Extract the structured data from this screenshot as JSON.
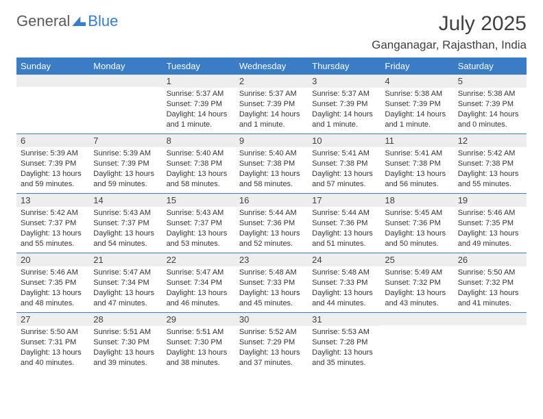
{
  "logo": {
    "text_a": "General",
    "text_b": "Blue"
  },
  "title": "July 2025",
  "location": "Ganganagar, Rajasthan, India",
  "colors": {
    "brand_blue": "#3b7dc4",
    "header_bg": "#3b7dc4",
    "header_text": "#ffffff",
    "daynum_bg": "#eeeeee",
    "body_text": "#333333",
    "page_bg": "#ffffff",
    "week_divider": "#3b7dc4"
  },
  "day_headers": [
    "Sunday",
    "Monday",
    "Tuesday",
    "Wednesday",
    "Thursday",
    "Friday",
    "Saturday"
  ],
  "weeks": [
    [
      null,
      null,
      {
        "n": "1",
        "sr": "Sunrise: 5:37 AM",
        "ss": "Sunset: 7:39 PM",
        "dl1": "Daylight: 14 hours",
        "dl2": "and 1 minute."
      },
      {
        "n": "2",
        "sr": "Sunrise: 5:37 AM",
        "ss": "Sunset: 7:39 PM",
        "dl1": "Daylight: 14 hours",
        "dl2": "and 1 minute."
      },
      {
        "n": "3",
        "sr": "Sunrise: 5:37 AM",
        "ss": "Sunset: 7:39 PM",
        "dl1": "Daylight: 14 hours",
        "dl2": "and 1 minute."
      },
      {
        "n": "4",
        "sr": "Sunrise: 5:38 AM",
        "ss": "Sunset: 7:39 PM",
        "dl1": "Daylight: 14 hours",
        "dl2": "and 1 minute."
      },
      {
        "n": "5",
        "sr": "Sunrise: 5:38 AM",
        "ss": "Sunset: 7:39 PM",
        "dl1": "Daylight: 14 hours",
        "dl2": "and 0 minutes."
      }
    ],
    [
      {
        "n": "6",
        "sr": "Sunrise: 5:39 AM",
        "ss": "Sunset: 7:39 PM",
        "dl1": "Daylight: 13 hours",
        "dl2": "and 59 minutes."
      },
      {
        "n": "7",
        "sr": "Sunrise: 5:39 AM",
        "ss": "Sunset: 7:39 PM",
        "dl1": "Daylight: 13 hours",
        "dl2": "and 59 minutes."
      },
      {
        "n": "8",
        "sr": "Sunrise: 5:40 AM",
        "ss": "Sunset: 7:38 PM",
        "dl1": "Daylight: 13 hours",
        "dl2": "and 58 minutes."
      },
      {
        "n": "9",
        "sr": "Sunrise: 5:40 AM",
        "ss": "Sunset: 7:38 PM",
        "dl1": "Daylight: 13 hours",
        "dl2": "and 58 minutes."
      },
      {
        "n": "10",
        "sr": "Sunrise: 5:41 AM",
        "ss": "Sunset: 7:38 PM",
        "dl1": "Daylight: 13 hours",
        "dl2": "and 57 minutes."
      },
      {
        "n": "11",
        "sr": "Sunrise: 5:41 AM",
        "ss": "Sunset: 7:38 PM",
        "dl1": "Daylight: 13 hours",
        "dl2": "and 56 minutes."
      },
      {
        "n": "12",
        "sr": "Sunrise: 5:42 AM",
        "ss": "Sunset: 7:38 PM",
        "dl1": "Daylight: 13 hours",
        "dl2": "and 55 minutes."
      }
    ],
    [
      {
        "n": "13",
        "sr": "Sunrise: 5:42 AM",
        "ss": "Sunset: 7:37 PM",
        "dl1": "Daylight: 13 hours",
        "dl2": "and 55 minutes."
      },
      {
        "n": "14",
        "sr": "Sunrise: 5:43 AM",
        "ss": "Sunset: 7:37 PM",
        "dl1": "Daylight: 13 hours",
        "dl2": "and 54 minutes."
      },
      {
        "n": "15",
        "sr": "Sunrise: 5:43 AM",
        "ss": "Sunset: 7:37 PM",
        "dl1": "Daylight: 13 hours",
        "dl2": "and 53 minutes."
      },
      {
        "n": "16",
        "sr": "Sunrise: 5:44 AM",
        "ss": "Sunset: 7:36 PM",
        "dl1": "Daylight: 13 hours",
        "dl2": "and 52 minutes."
      },
      {
        "n": "17",
        "sr": "Sunrise: 5:44 AM",
        "ss": "Sunset: 7:36 PM",
        "dl1": "Daylight: 13 hours",
        "dl2": "and 51 minutes."
      },
      {
        "n": "18",
        "sr": "Sunrise: 5:45 AM",
        "ss": "Sunset: 7:36 PM",
        "dl1": "Daylight: 13 hours",
        "dl2": "and 50 minutes."
      },
      {
        "n": "19",
        "sr": "Sunrise: 5:46 AM",
        "ss": "Sunset: 7:35 PM",
        "dl1": "Daylight: 13 hours",
        "dl2": "and 49 minutes."
      }
    ],
    [
      {
        "n": "20",
        "sr": "Sunrise: 5:46 AM",
        "ss": "Sunset: 7:35 PM",
        "dl1": "Daylight: 13 hours",
        "dl2": "and 48 minutes."
      },
      {
        "n": "21",
        "sr": "Sunrise: 5:47 AM",
        "ss": "Sunset: 7:34 PM",
        "dl1": "Daylight: 13 hours",
        "dl2": "and 47 minutes."
      },
      {
        "n": "22",
        "sr": "Sunrise: 5:47 AM",
        "ss": "Sunset: 7:34 PM",
        "dl1": "Daylight: 13 hours",
        "dl2": "and 46 minutes."
      },
      {
        "n": "23",
        "sr": "Sunrise: 5:48 AM",
        "ss": "Sunset: 7:33 PM",
        "dl1": "Daylight: 13 hours",
        "dl2": "and 45 minutes."
      },
      {
        "n": "24",
        "sr": "Sunrise: 5:48 AM",
        "ss": "Sunset: 7:33 PM",
        "dl1": "Daylight: 13 hours",
        "dl2": "and 44 minutes."
      },
      {
        "n": "25",
        "sr": "Sunrise: 5:49 AM",
        "ss": "Sunset: 7:32 PM",
        "dl1": "Daylight: 13 hours",
        "dl2": "and 43 minutes."
      },
      {
        "n": "26",
        "sr": "Sunrise: 5:50 AM",
        "ss": "Sunset: 7:32 PM",
        "dl1": "Daylight: 13 hours",
        "dl2": "and 41 minutes."
      }
    ],
    [
      {
        "n": "27",
        "sr": "Sunrise: 5:50 AM",
        "ss": "Sunset: 7:31 PM",
        "dl1": "Daylight: 13 hours",
        "dl2": "and 40 minutes."
      },
      {
        "n": "28",
        "sr": "Sunrise: 5:51 AM",
        "ss": "Sunset: 7:30 PM",
        "dl1": "Daylight: 13 hours",
        "dl2": "and 39 minutes."
      },
      {
        "n": "29",
        "sr": "Sunrise: 5:51 AM",
        "ss": "Sunset: 7:30 PM",
        "dl1": "Daylight: 13 hours",
        "dl2": "and 38 minutes."
      },
      {
        "n": "30",
        "sr": "Sunrise: 5:52 AM",
        "ss": "Sunset: 7:29 PM",
        "dl1": "Daylight: 13 hours",
        "dl2": "and 37 minutes."
      },
      {
        "n": "31",
        "sr": "Sunrise: 5:53 AM",
        "ss": "Sunset: 7:28 PM",
        "dl1": "Daylight: 13 hours",
        "dl2": "and 35 minutes."
      },
      null,
      null
    ]
  ]
}
